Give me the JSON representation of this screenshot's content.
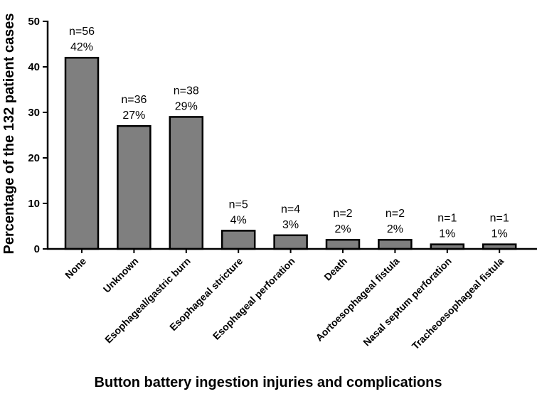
{
  "chart_data": {
    "type": "bar",
    "ylabel": "Percentage of the 132 patient cases",
    "xlabel": "Button battery ingestion injuries and complications",
    "ylim": [
      0,
      50
    ],
    "yticks": [
      0,
      10,
      20,
      30,
      40,
      50
    ],
    "grid": false,
    "categories": [
      "None",
      "Unknown",
      "Esophageal/gastric burn",
      "Esophageal stricture",
      "Esophageal perforation",
      "Death",
      "Aortoesophageal fistula",
      "Nasal septum perforation",
      "Tracheoesophageal fistula"
    ],
    "values": [
      42,
      27,
      29,
      4,
      3,
      2,
      2,
      1,
      1
    ],
    "counts": [
      "n=56",
      "n=36",
      "n=38",
      "n=5",
      "n=4",
      "n=2",
      "n=2",
      "n=1",
      "n=1"
    ],
    "percent_labels": [
      "42%",
      "27%",
      "29%",
      "4%",
      "3%",
      "2%",
      "2%",
      "1%",
      "1%"
    ],
    "bar_color": "#7f7f7f",
    "bar_edge_color": "#000000"
  }
}
